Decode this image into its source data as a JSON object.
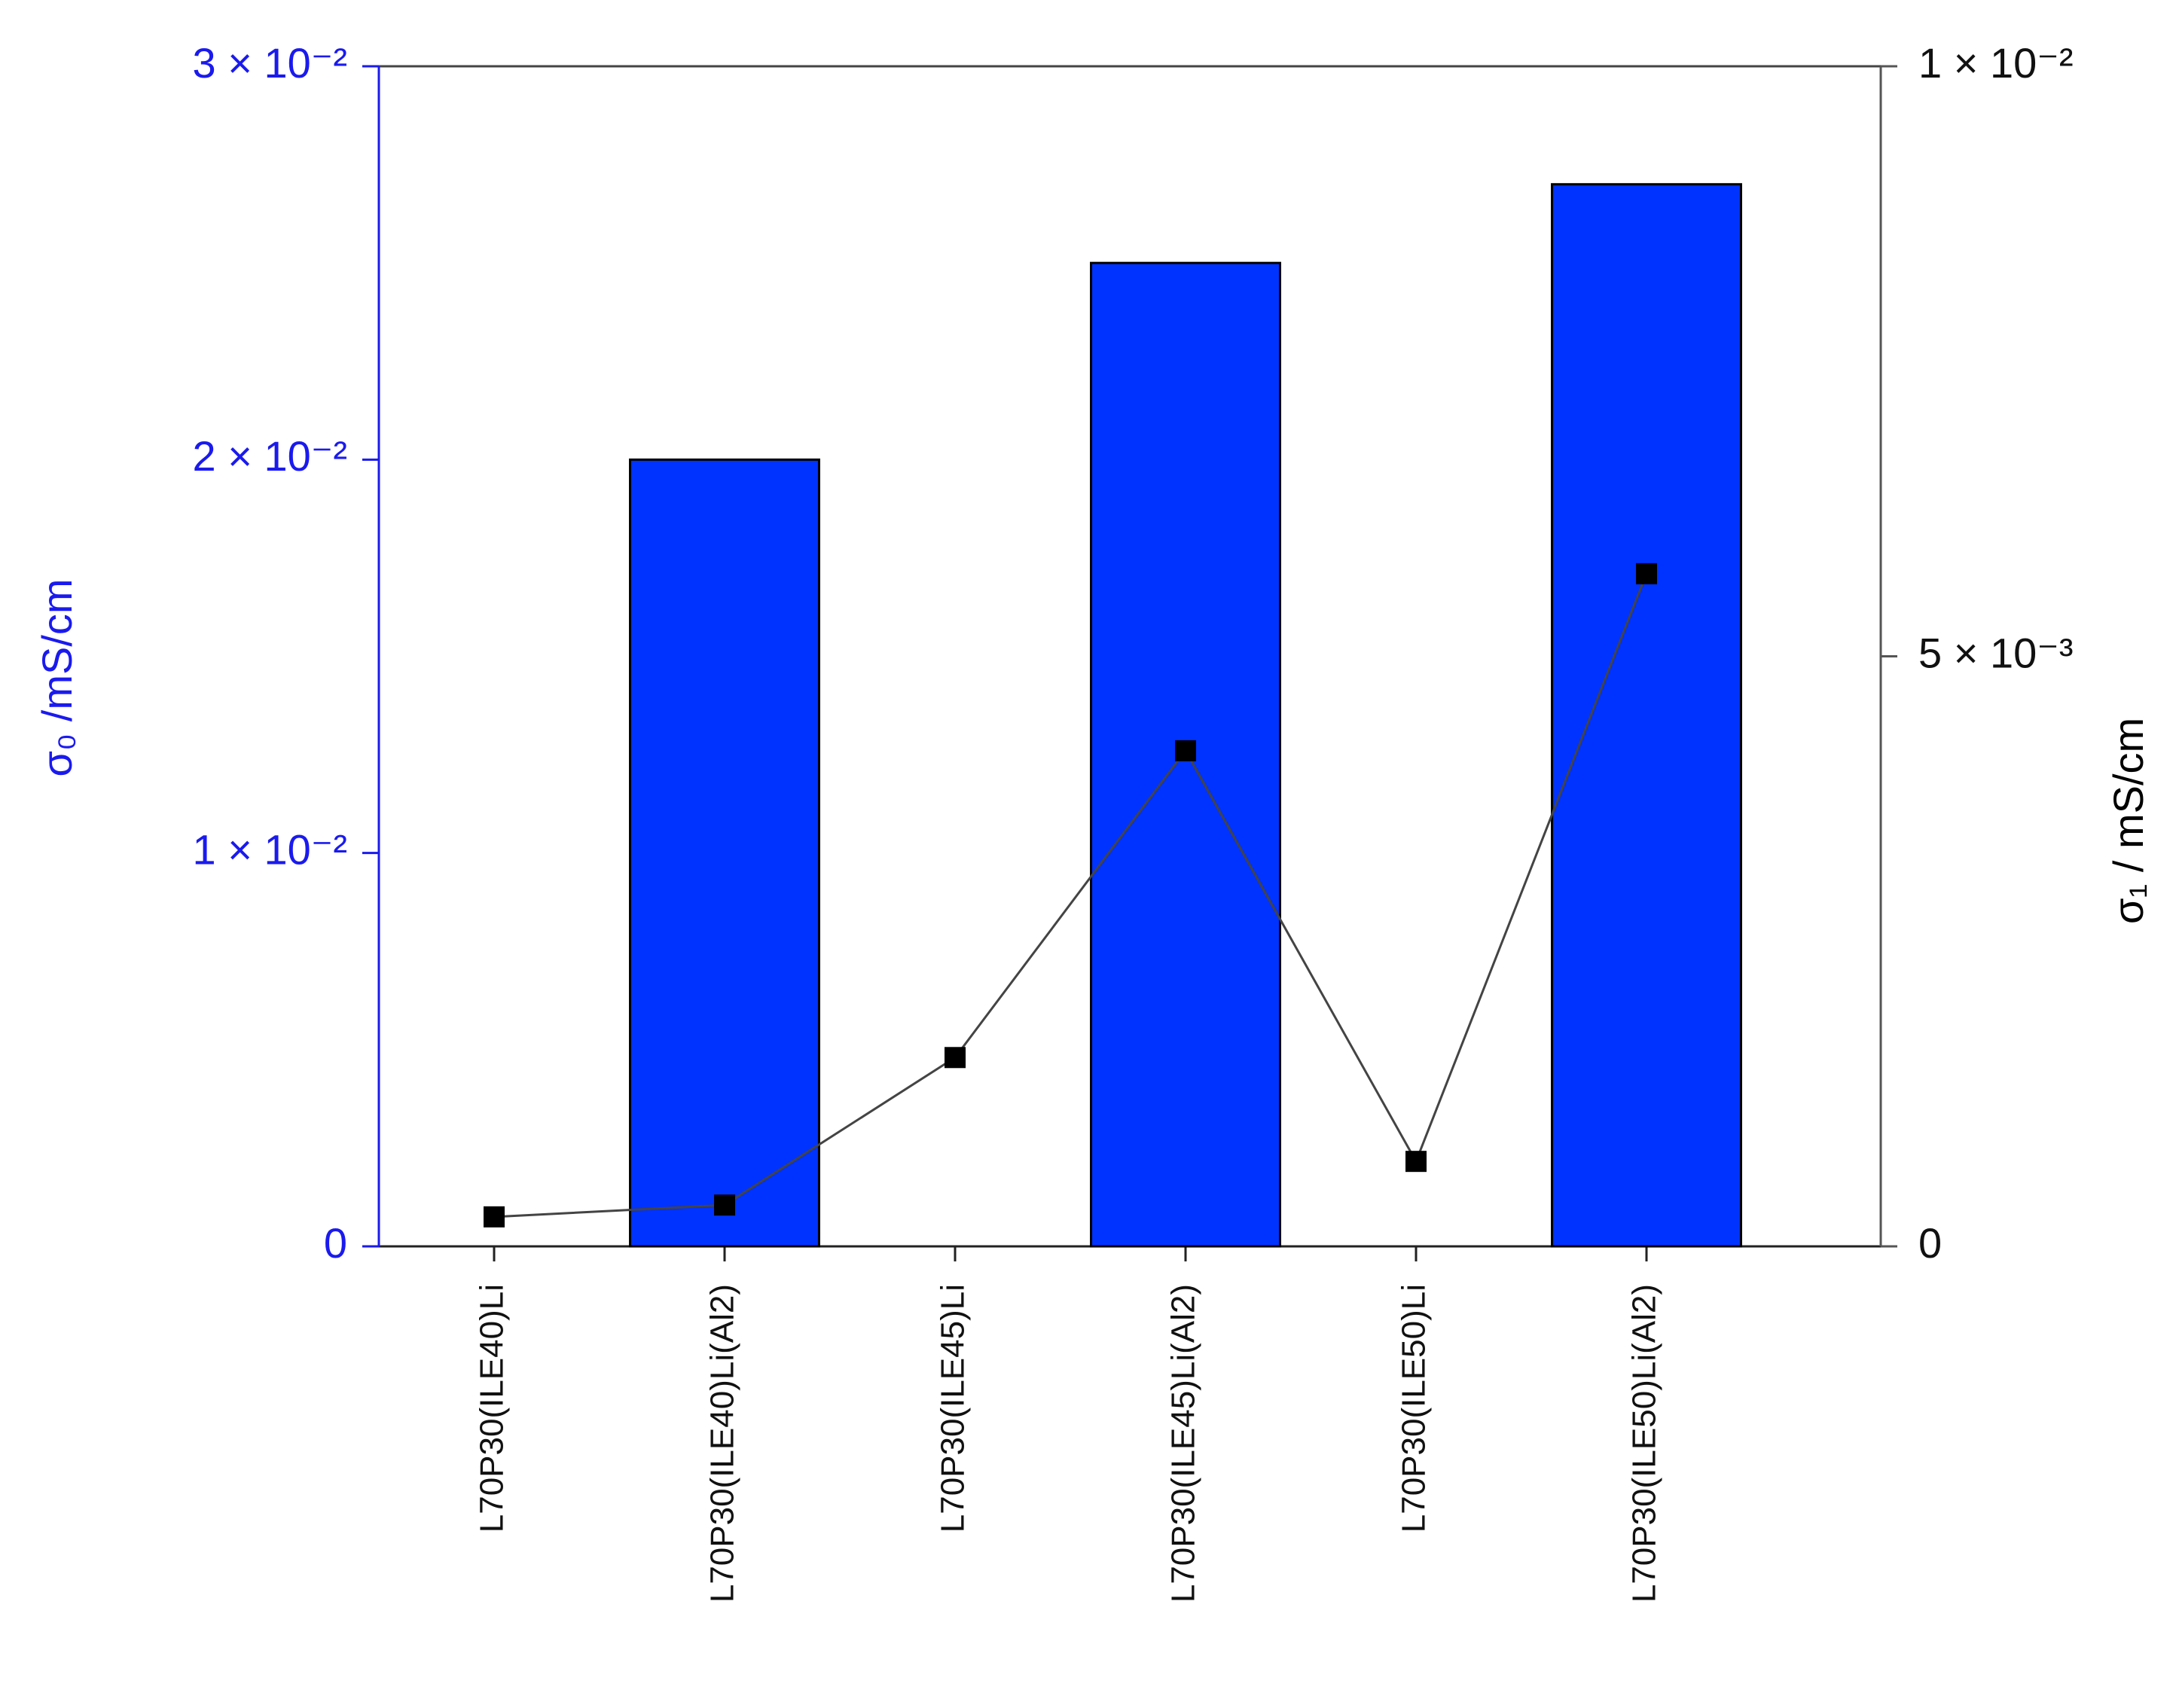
{
  "chart_data": {
    "type": "bar",
    "ylabel": "σ₀ /mS/cm",
    "y2label": "σ₁ / mS/cm",
    "categories": [
      "L70P30(ILE40)Li",
      "L70P30(ILE40)Li(Al2)",
      "L70P30(ILE45)Li",
      "L70P30(ILE45)Li(Al2)",
      "L70P30(ILE50)Li",
      "L70P30(ILE50)Li(Al2)"
    ],
    "series": [
      {
        "type": "bar",
        "color": "#0033ff",
        "values": [
          null,
          0.02,
          null,
          0.025,
          null,
          0.027
        ]
      },
      {
        "type": "line",
        "axis": "y2",
        "color": "#000000",
        "values": [
          0.00025,
          0.00035,
          0.0016,
          0.0042,
          0.00072,
          0.0057
        ]
      }
    ],
    "ylim": [
      0,
      0.03
    ],
    "yticks": [
      {
        "value": 0,
        "label": "0"
      },
      {
        "value": 0.01,
        "label": "1 × 10⁻²"
      },
      {
        "value": 0.02,
        "label": "2 × 10⁻²"
      },
      {
        "value": 0.03,
        "label": "3 × 10⁻²"
      }
    ],
    "y2lim": [
      0,
      0.01
    ],
    "y2ticks": [
      {
        "value": 0,
        "label": "0"
      },
      {
        "value": 0.005,
        "label": "5 × 10⁻³"
      },
      {
        "value": 0.01,
        "label": "1 × 10⁻²"
      }
    ],
    "ycolor": "#1a1aee"
  }
}
